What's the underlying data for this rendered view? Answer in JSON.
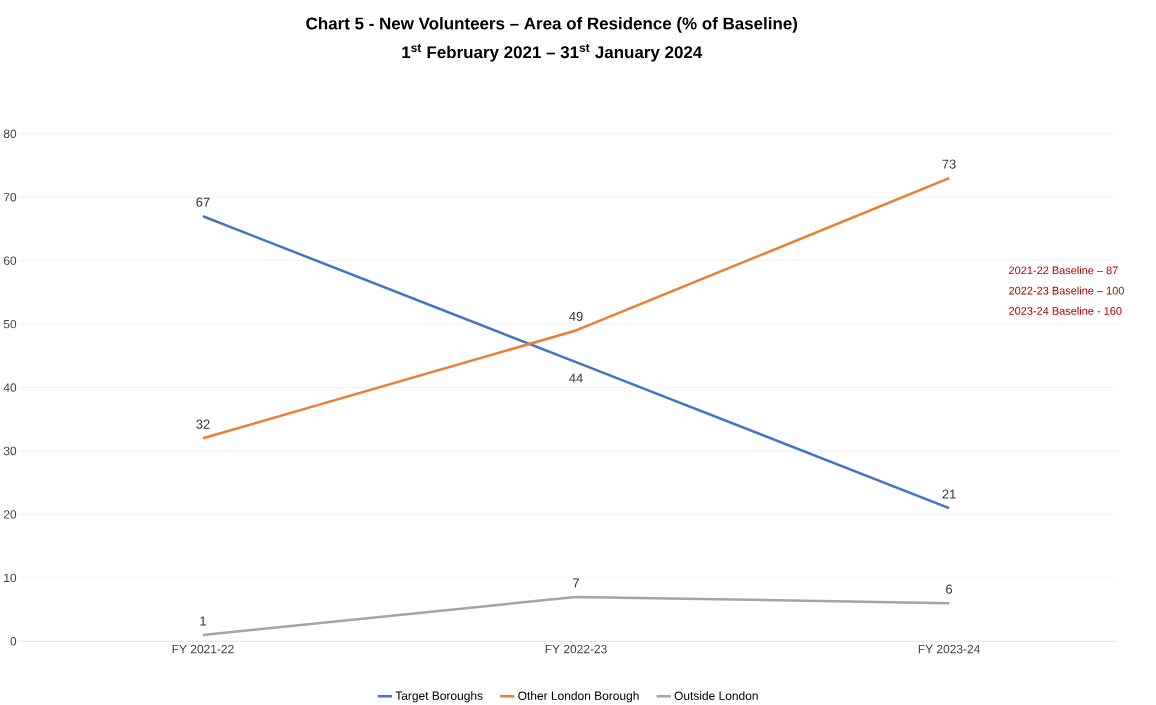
{
  "chart_data": {
    "type": "line",
    "title": "Chart 5 - New Volunteers – Area of Residence (% of Baseline)",
    "subtitle": "1$^{st}$ February 2021 – 31$^{st}$ January 2024",
    "categories": [
      "FY 2021-22",
      "FY 2022-23",
      "FY 2023-24"
    ],
    "series": [
      {
        "name": "Target Boroughs",
        "color": "#4472c4",
        "values": [
          67,
          44,
          21
        ]
      },
      {
        "name": "Other London Borough",
        "color": "#ed7d31",
        "values": [
          32,
          49,
          73
        ]
      },
      {
        "name": "Outside London",
        "color": "#a5a5a5",
        "values": [
          1,
          7,
          6
        ]
      }
    ],
    "ylim": [
      0,
      80
    ],
    "yticks": [
      0,
      10,
      20,
      30,
      40,
      50,
      60,
      70,
      80
    ],
    "grid": "y",
    "legend": "bottom",
    "data_labels": true,
    "marker": "none",
    "line_style": "solid",
    "annotations": [
      "2021-22 Baseline – 87",
      "2022-23 Baseline – 100",
      "2023-24 Baseline - 160"
    ]
  }
}
